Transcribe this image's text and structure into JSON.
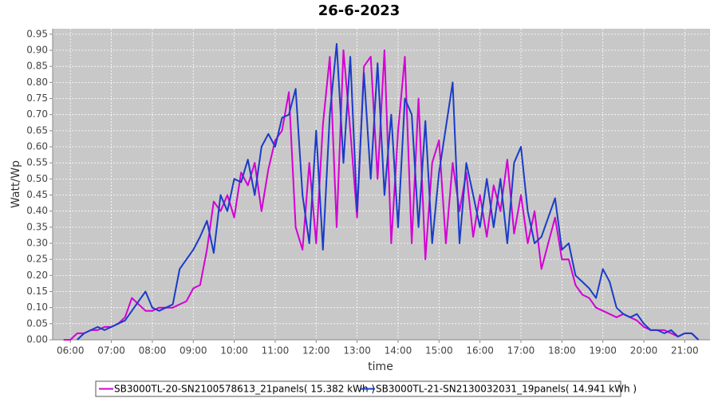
{
  "chart_data": {
    "type": "line",
    "title": "26-6-2023",
    "x_label": "time",
    "y_label": "Watt/Wp",
    "xlim": [
      "05:34",
      "21:37"
    ],
    "xticks": [
      "06:00",
      "07:00",
      "08:00",
      "09:00",
      "10:00",
      "11:00",
      "12:00",
      "13:00",
      "14:00",
      "15:00",
      "16:00",
      "17:00",
      "18:00",
      "19:00",
      "20:00",
      "21:00"
    ],
    "ylim": [
      0,
      0.967
    ],
    "yticks": [
      {
        "value": 0,
        "label": "0.00"
      },
      0.05,
      {
        "value": 0.1,
        "label": "0.10"
      },
      0.15,
      {
        "value": 0.2,
        "label": "0.20"
      },
      0.25,
      {
        "value": 0.3,
        "label": "0.30"
      },
      0.35,
      {
        "value": 0.4,
        "label": "0.40"
      },
      0.45,
      {
        "value": 0.5,
        "label": "0.50"
      },
      0.55,
      {
        "value": 0.6,
        "label": "0.60"
      },
      0.65,
      {
        "value": 0.7,
        "label": "0.70"
      },
      0.75,
      {
        "value": 0.8,
        "label": "0.80"
      },
      0.85,
      {
        "value": 0.9,
        "label": "0.90"
      },
      0.95
    ],
    "grid": true,
    "legend_position": "bottom",
    "x": [
      "05:50",
      "06:00",
      "06:10",
      "06:20",
      "06:30",
      "06:40",
      "06:50",
      "07:00",
      "07:10",
      "07:20",
      "07:30",
      "07:40",
      "07:50",
      "08:00",
      "08:10",
      "08:20",
      "08:30",
      "08:40",
      "08:50",
      "09:00",
      "09:10",
      "09:20",
      "09:30",
      "09:40",
      "09:50",
      "10:00",
      "10:10",
      "10:20",
      "10:30",
      "10:40",
      "10:50",
      "11:00",
      "11:10",
      "11:20",
      "11:30",
      "11:40",
      "11:50",
      "12:00",
      "12:10",
      "12:20",
      "12:30",
      "12:40",
      "12:50",
      "13:00",
      "13:10",
      "13:20",
      "13:30",
      "13:40",
      "13:50",
      "14:00",
      "14:10",
      "14:20",
      "14:30",
      "14:40",
      "14:50",
      "15:00",
      "15:10",
      "15:20",
      "15:30",
      "15:40",
      "15:50",
      "16:00",
      "16:10",
      "16:20",
      "16:30",
      "16:40",
      "16:50",
      "17:00",
      "17:10",
      "17:20",
      "17:30",
      "17:40",
      "17:50",
      "18:00",
      "18:10",
      "18:20",
      "18:30",
      "18:40",
      "18:50",
      "19:00",
      "19:10",
      "19:20",
      "19:30",
      "19:40",
      "19:50",
      "20:00",
      "20:10",
      "20:20",
      "20:30",
      "20:40",
      "20:50",
      "21:00",
      "21:10",
      "21:20"
    ],
    "series": [
      {
        "name": "SB3000TL-20-SN2100578613_21panels( 15.382 kWh )",
        "color": "#d400d4",
        "values": [
          0,
          0,
          0.02,
          0.02,
          0.03,
          0.03,
          0.04,
          0.04,
          0.05,
          0.07,
          0.13,
          0.11,
          0.09,
          0.09,
          0.1,
          0.1,
          0.1,
          0.11,
          0.12,
          0.16,
          0.17,
          0.28,
          0.43,
          0.4,
          0.45,
          0.38,
          0.52,
          0.48,
          0.55,
          0.4,
          0.53,
          0.62,
          0.65,
          0.77,
          0.35,
          0.28,
          0.55,
          0.3,
          0.67,
          0.88,
          0.35,
          0.9,
          0.65,
          0.38,
          0.85,
          0.88,
          0.5,
          0.9,
          0.3,
          0.65,
          0.88,
          0.3,
          0.75,
          0.25,
          0.55,
          0.62,
          0.3,
          0.55,
          0.4,
          0.52,
          0.32,
          0.45,
          0.32,
          0.48,
          0.4,
          0.56,
          0.33,
          0.45,
          0.3,
          0.4,
          0.22,
          0.3,
          0.38,
          0.25,
          0.25,
          0.17,
          0.14,
          0.13,
          0.1,
          0.09,
          0.08,
          0.07,
          0.08,
          0.07,
          0.06,
          0.04,
          0.03,
          0.03,
          0.03,
          0.02,
          0.01,
          0.02,
          0.02,
          0
        ]
      },
      {
        "name": "SB3000TL-21-SN2130032031_19panels( 14.941 kWh )",
        "color": "#1a3cc8",
        "values": [
          null,
          null,
          0,
          0.02,
          0.03,
          0.04,
          0.03,
          0.04,
          0.05,
          0.06,
          0.09,
          0.12,
          0.15,
          0.1,
          0.09,
          0.1,
          0.11,
          0.22,
          0.25,
          0.28,
          0.32,
          0.37,
          0.27,
          0.45,
          0.4,
          0.5,
          0.49,
          0.56,
          0.45,
          0.6,
          0.64,
          0.6,
          0.69,
          0.7,
          0.78,
          0.45,
          0.3,
          0.65,
          0.28,
          0.7,
          0.92,
          0.55,
          0.88,
          0.4,
          0.83,
          0.5,
          0.86,
          0.45,
          0.7,
          0.35,
          0.75,
          0.7,
          0.35,
          0.68,
          0.3,
          0.52,
          0.66,
          0.8,
          0.3,
          0.55,
          0.45,
          0.35,
          0.5,
          0.35,
          0.5,
          0.3,
          0.55,
          0.6,
          0.4,
          0.3,
          0.32,
          0.38,
          0.44,
          0.28,
          0.3,
          0.2,
          0.18,
          0.16,
          0.13,
          0.22,
          0.18,
          0.1,
          0.08,
          0.07,
          0.08,
          0.05,
          0.03,
          0.03,
          0.02,
          0.03,
          0.01,
          0.02,
          0.02,
          0
        ]
      }
    ]
  }
}
